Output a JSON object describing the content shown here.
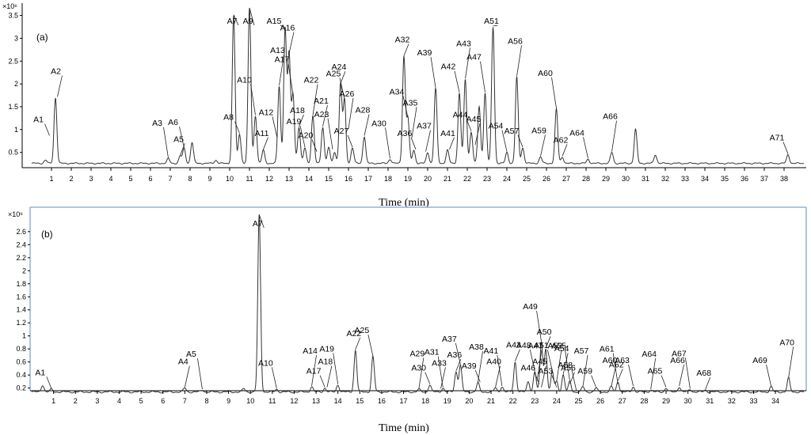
{
  "chart_data": [
    {
      "type": "line",
      "panel": "(a)",
      "xlabel": "Time (min)",
      "ylabel_exponent": "×10⁶",
      "xlim": [
        0,
        39
      ],
      "ylim": [
        0.2,
        3.7
      ],
      "x_ticks": [
        1,
        2,
        3,
        4,
        5,
        6,
        7,
        8,
        9,
        10,
        11,
        12,
        13,
        14,
        15,
        16,
        17,
        18,
        19,
        20,
        21,
        22,
        23,
        24,
        25,
        26,
        27,
        28,
        29,
        30,
        31,
        32,
        33,
        34,
        35,
        36,
        37,
        38
      ],
      "y_ticks": [
        "0.5",
        "1",
        "1.5",
        "2",
        "2.5",
        "3",
        "3.5"
      ],
      "baseline": 0.26,
      "peaks": [
        {
          "t": 0.7,
          "h": 0.33
        },
        {
          "t": 1.2,
          "h": 1.7
        },
        {
          "t": 6.9,
          "h": 0.36
        },
        {
          "t": 7.5,
          "h": 0.42
        },
        {
          "t": 7.7,
          "h": 0.58
        },
        {
          "t": 8.1,
          "h": 0.72
        },
        {
          "t": 9.3,
          "h": 0.33
        },
        {
          "t": 10.2,
          "h": 3.5
        },
        {
          "t": 10.5,
          "h": 0.9
        },
        {
          "t": 11.0,
          "h": 3.65
        },
        {
          "t": 11.3,
          "h": 1.3
        },
        {
          "t": 11.7,
          "h": 0.55
        },
        {
          "t": 12.5,
          "h": 1.95
        },
        {
          "t": 12.8,
          "h": 3.2
        },
        {
          "t": 13.0,
          "h": 2.65
        },
        {
          "t": 13.2,
          "h": 1.75
        },
        {
          "t": 13.5,
          "h": 1.05
        },
        {
          "t": 13.8,
          "h": 0.6
        },
        {
          "t": 14.2,
          "h": 1.3
        },
        {
          "t": 14.7,
          "h": 1.05
        },
        {
          "t": 15.0,
          "h": 0.6
        },
        {
          "t": 15.3,
          "h": 0.5
        },
        {
          "t": 15.6,
          "h": 2.0
        },
        {
          "t": 15.8,
          "h": 1.65
        },
        {
          "t": 16.2,
          "h": 0.6
        },
        {
          "t": 16.8,
          "h": 0.85
        },
        {
          "t": 18.1,
          "h": 0.35
        },
        {
          "t": 18.8,
          "h": 2.6
        },
        {
          "t": 19.0,
          "h": 1.25
        },
        {
          "t": 19.3,
          "h": 0.55
        },
        {
          "t": 20.0,
          "h": 0.5
        },
        {
          "t": 20.4,
          "h": 1.9
        },
        {
          "t": 21.0,
          "h": 0.55
        },
        {
          "t": 21.6,
          "h": 1.8
        },
        {
          "t": 21.9,
          "h": 2.1
        },
        {
          "t": 22.2,
          "h": 0.95
        },
        {
          "t": 22.6,
          "h": 1.5
        },
        {
          "t": 22.9,
          "h": 1.8
        },
        {
          "t": 23.3,
          "h": 3.25
        },
        {
          "t": 24.0,
          "h": 0.5
        },
        {
          "t": 24.5,
          "h": 2.15
        },
        {
          "t": 24.8,
          "h": 0.6
        },
        {
          "t": 25.7,
          "h": 0.4
        },
        {
          "t": 26.5,
          "h": 1.45
        },
        {
          "t": 26.8,
          "h": 0.4
        },
        {
          "t": 28.1,
          "h": 0.35
        },
        {
          "t": 29.3,
          "h": 0.5
        },
        {
          "t": 30.5,
          "h": 1.0
        },
        {
          "t": 31.5,
          "h": 0.45
        },
        {
          "t": 38.2,
          "h": 0.45
        }
      ],
      "annotations": [
        {
          "label": "A1",
          "t": 0.9,
          "y": 0.85
        },
        {
          "label": "A2",
          "t": 1.3,
          "y": 1.7
        },
        {
          "label": "A3",
          "t": 6.9,
          "y": 0.36
        },
        {
          "label": "A5",
          "t": 7.5,
          "y": 0.42
        },
        {
          "label": "A6",
          "t": 7.7,
          "y": 0.58
        },
        {
          "label": "A7",
          "t": 10.2,
          "y": 3.5
        },
        {
          "label": "A8",
          "t": 10.5,
          "y": 0.9
        },
        {
          "label": "A9",
          "t": 11.0,
          "y": 3.65
        },
        {
          "label": "A10",
          "t": 11.3,
          "y": 1.3
        },
        {
          "label": "A11",
          "t": 11.7,
          "y": 0.55
        },
        {
          "label": "A12",
          "t": 12.4,
          "y": 0.8
        },
        {
          "label": "A13",
          "t": 12.5,
          "y": 1.95
        },
        {
          "label": "A15",
          "t": 12.8,
          "y": 3.2
        },
        {
          "label": "A16",
          "t": 13.0,
          "y": 2.65
        },
        {
          "label": "A17",
          "t": 13.2,
          "y": 1.75
        },
        {
          "label": "A18",
          "t": 13.5,
          "y": 1.05
        },
        {
          "label": "A19",
          "t": 13.8,
          "y": 0.6
        },
        {
          "label": "A20",
          "t": 14.4,
          "y": 0.5
        },
        {
          "label": "A21",
          "t": 14.7,
          "y": 1.05
        },
        {
          "label": "A22",
          "t": 14.2,
          "y": 1.3
        },
        {
          "label": "A23",
          "t": 15.2,
          "y": 0.55
        },
        {
          "label": "A24",
          "t": 15.6,
          "y": 2.0
        },
        {
          "label": "A25",
          "t": 15.8,
          "y": 1.65
        },
        {
          "label": "A26",
          "t": 16.0,
          "y": 1.0
        },
        {
          "label": "A27",
          "t": 16.2,
          "y": 0.6
        },
        {
          "label": "A28",
          "t": 16.8,
          "y": 0.85
        },
        {
          "label": "A30",
          "t": 18.1,
          "y": 0.35
        },
        {
          "label": "A32",
          "t": 18.8,
          "y": 2.6
        },
        {
          "label": "A34",
          "t": 19.0,
          "y": 1.25
        },
        {
          "label": "A35",
          "t": 19.2,
          "y": 0.8
        },
        {
          "label": "A36",
          "t": 19.4,
          "y": 0.55
        },
        {
          "label": "A37",
          "t": 19.9,
          "y": 0.5
        },
        {
          "label": "A39",
          "t": 20.4,
          "y": 1.9
        },
        {
          "label": "A41",
          "t": 21.1,
          "y": 0.55
        },
        {
          "label": "A42",
          "t": 21.6,
          "y": 1.8
        },
        {
          "label": "A43",
          "t": 21.9,
          "y": 2.1
        },
        {
          "label": "A44",
          "t": 22.2,
          "y": 0.95
        },
        {
          "label": "A45",
          "t": 22.4,
          "y": 0.65
        },
        {
          "label": "A47",
          "t": 22.9,
          "y": 1.8
        },
        {
          "label": "A51",
          "t": 23.3,
          "y": 3.25
        },
        {
          "label": "A54",
          "t": 24.0,
          "y": 0.5
        },
        {
          "label": "A56",
          "t": 24.5,
          "y": 2.15
        },
        {
          "label": "A57",
          "t": 24.8,
          "y": 0.6
        },
        {
          "label": "A59",
          "t": 25.7,
          "y": 0.4
        },
        {
          "label": "A60",
          "t": 26.5,
          "y": 1.45
        },
        {
          "label": "A62",
          "t": 26.8,
          "y": 0.4
        },
        {
          "label": "A64",
          "t": 28.1,
          "y": 0.35
        },
        {
          "label": "A66",
          "t": 29.3,
          "y": 0.5
        },
        {
          "label": "A71",
          "t": 38.2,
          "y": 0.45
        }
      ]
    },
    {
      "type": "line",
      "panel": "(b)",
      "xlabel": "Time (min)",
      "ylabel_exponent": "×10⁶",
      "xlim": [
        0,
        35.3
      ],
      "ylim": [
        0.05,
        2.95
      ],
      "x_ticks": [
        1,
        2,
        3,
        4,
        5,
        6,
        7,
        8,
        9,
        10,
        11,
        12,
        13,
        14,
        15,
        16,
        17,
        18,
        19,
        20,
        21,
        22,
        23,
        24,
        25,
        26,
        27,
        28,
        29,
        30,
        31,
        32,
        33,
        34
      ],
      "y_ticks": [
        "0.2",
        "0.4",
        "0.6",
        "0.8",
        "1",
        "1.2",
        "1.4",
        "1.6",
        "1.8",
        "2",
        "2.2",
        "2.4",
        "2.6"
      ],
      "baseline": 0.14,
      "peaks": [
        {
          "t": 0.5,
          "h": 0.25
        },
        {
          "t": 0.9,
          "h": 0.18
        },
        {
          "t": 7.0,
          "h": 0.2
        },
        {
          "t": 7.8,
          "h": 0.17
        },
        {
          "t": 9.7,
          "h": 0.19
        },
        {
          "t": 10.4,
          "h": 2.85
        },
        {
          "t": 11.2,
          "h": 0.18
        },
        {
          "t": 12.8,
          "h": 0.22
        },
        {
          "t": 13.4,
          "h": 0.2
        },
        {
          "t": 14.0,
          "h": 0.25
        },
        {
          "t": 14.8,
          "h": 0.78
        },
        {
          "t": 15.6,
          "h": 0.68
        },
        {
          "t": 17.7,
          "h": 0.18
        },
        {
          "t": 18.2,
          "h": 0.25
        },
        {
          "t": 18.8,
          "h": 0.2
        },
        {
          "t": 19.4,
          "h": 0.45
        },
        {
          "t": 19.6,
          "h": 0.55
        },
        {
          "t": 20.4,
          "h": 0.28
        },
        {
          "t": 21.2,
          "h": 0.2
        },
        {
          "t": 21.5,
          "h": 0.22
        },
        {
          "t": 22.1,
          "h": 0.6
        },
        {
          "t": 22.7,
          "h": 0.3
        },
        {
          "t": 23.0,
          "h": 0.45
        },
        {
          "t": 23.3,
          "h": 0.9
        },
        {
          "t": 23.5,
          "h": 0.8
        },
        {
          "t": 23.8,
          "h": 0.45
        },
        {
          "t": 24.0,
          "h": 0.3
        },
        {
          "t": 24.3,
          "h": 0.4
        },
        {
          "t": 24.6,
          "h": 0.3
        },
        {
          "t": 25.2,
          "h": 0.22
        },
        {
          "t": 25.8,
          "h": 0.2
        },
        {
          "t": 26.5,
          "h": 0.22
        },
        {
          "t": 26.8,
          "h": 0.3
        },
        {
          "t": 27.5,
          "h": 0.22
        },
        {
          "t": 28.3,
          "h": 0.17
        },
        {
          "t": 29.0,
          "h": 0.2
        },
        {
          "t": 29.6,
          "h": 0.22
        },
        {
          "t": 30.1,
          "h": 0.18
        },
        {
          "t": 30.8,
          "h": 0.17
        },
        {
          "t": 33.8,
          "h": 0.22
        },
        {
          "t": 34.6,
          "h": 0.35
        }
      ],
      "annotations": [
        {
          "label": "A1",
          "t": 0.9,
          "y": 0.18
        },
        {
          "label": "A4",
          "t": 7.0,
          "y": 0.2
        },
        {
          "label": "A5",
          "t": 7.8,
          "y": 0.17
        },
        {
          "label": "A7",
          "t": 10.4,
          "y": 2.85
        },
        {
          "label": "A10",
          "t": 11.2,
          "y": 0.18
        },
        {
          "label": "A14",
          "t": 12.8,
          "y": 0.22
        },
        {
          "label": "A17",
          "t": 13.4,
          "y": 0.2
        },
        {
          "label": "A18",
          "t": 13.5,
          "y": 0.2
        },
        {
          "label": "A19",
          "t": 14.0,
          "y": 0.25
        },
        {
          "label": "A22",
          "t": 14.8,
          "y": 0.78
        },
        {
          "label": "A25",
          "t": 15.6,
          "y": 0.68
        },
        {
          "label": "A29",
          "t": 17.7,
          "y": 0.18
        },
        {
          "label": "A30",
          "t": 18.2,
          "y": 0.25
        },
        {
          "label": "A31",
          "t": 18.8,
          "y": 0.2
        },
        {
          "label": "A33",
          "t": 18.7,
          "y": 0.18
        },
        {
          "label": "A36",
          "t": 19.4,
          "y": 0.45
        },
        {
          "label": "A37",
          "t": 19.6,
          "y": 0.55
        },
        {
          "label": "A38",
          "t": 20.4,
          "y": 0.28
        },
        {
          "label": "A39",
          "t": 20.5,
          "y": 0.28
        },
        {
          "label": "A40",
          "t": 21.2,
          "y": 0.2
        },
        {
          "label": "A41",
          "t": 21.5,
          "y": 0.22
        },
        {
          "label": "A43",
          "t": 22.1,
          "y": 0.6
        },
        {
          "label": "A45",
          "t": 23.3,
          "y": 0.2
        },
        {
          "label": "A46",
          "t": 23.2,
          "y": 0.25
        },
        {
          "label": "A47",
          "t": 23.1,
          "y": 0.3
        },
        {
          "label": "A48",
          "t": 23.0,
          "y": 0.45
        },
        {
          "label": "A49",
          "t": 23.3,
          "y": 0.9
        },
        {
          "label": "A50",
          "t": 23.5,
          "y": 0.8
        },
        {
          "label": "A51",
          "t": 23.8,
          "y": 0.45
        },
        {
          "label": "A52",
          "t": 24.0,
          "y": 0.3
        },
        {
          "label": "A53",
          "t": 24.0,
          "y": 0.2
        },
        {
          "label": "A54",
          "t": 24.3,
          "y": 0.4
        },
        {
          "label": "A55",
          "t": 24.6,
          "y": 0.3
        },
        {
          "label": "A56",
          "t": 24.6,
          "y": 0.25
        },
        {
          "label": "A57",
          "t": 25.2,
          "y": 0.22
        },
        {
          "label": "A58",
          "t": 24.9,
          "y": 0.15
        },
        {
          "label": "A59",
          "t": 25.8,
          "y": 0.2
        },
        {
          "label": "A60",
          "t": 26.5,
          "y": 0.22
        },
        {
          "label": "A61",
          "t": 26.8,
          "y": 0.25
        },
        {
          "label": "A62",
          "t": 26.8,
          "y": 0.3
        },
        {
          "label": "A63",
          "t": 27.5,
          "y": 0.22
        },
        {
          "label": "A64",
          "t": 28.3,
          "y": 0.17
        },
        {
          "label": "A65",
          "t": 29.0,
          "y": 0.2
        },
        {
          "label": "A66",
          "t": 29.6,
          "y": 0.22
        },
        {
          "label": "A67",
          "t": 30.1,
          "y": 0.18
        },
        {
          "label": "A68",
          "t": 30.8,
          "y": 0.17
        },
        {
          "label": "A69",
          "t": 33.8,
          "y": 0.22
        },
        {
          "label": "A70",
          "t": 34.6,
          "y": 0.35
        }
      ]
    }
  ]
}
